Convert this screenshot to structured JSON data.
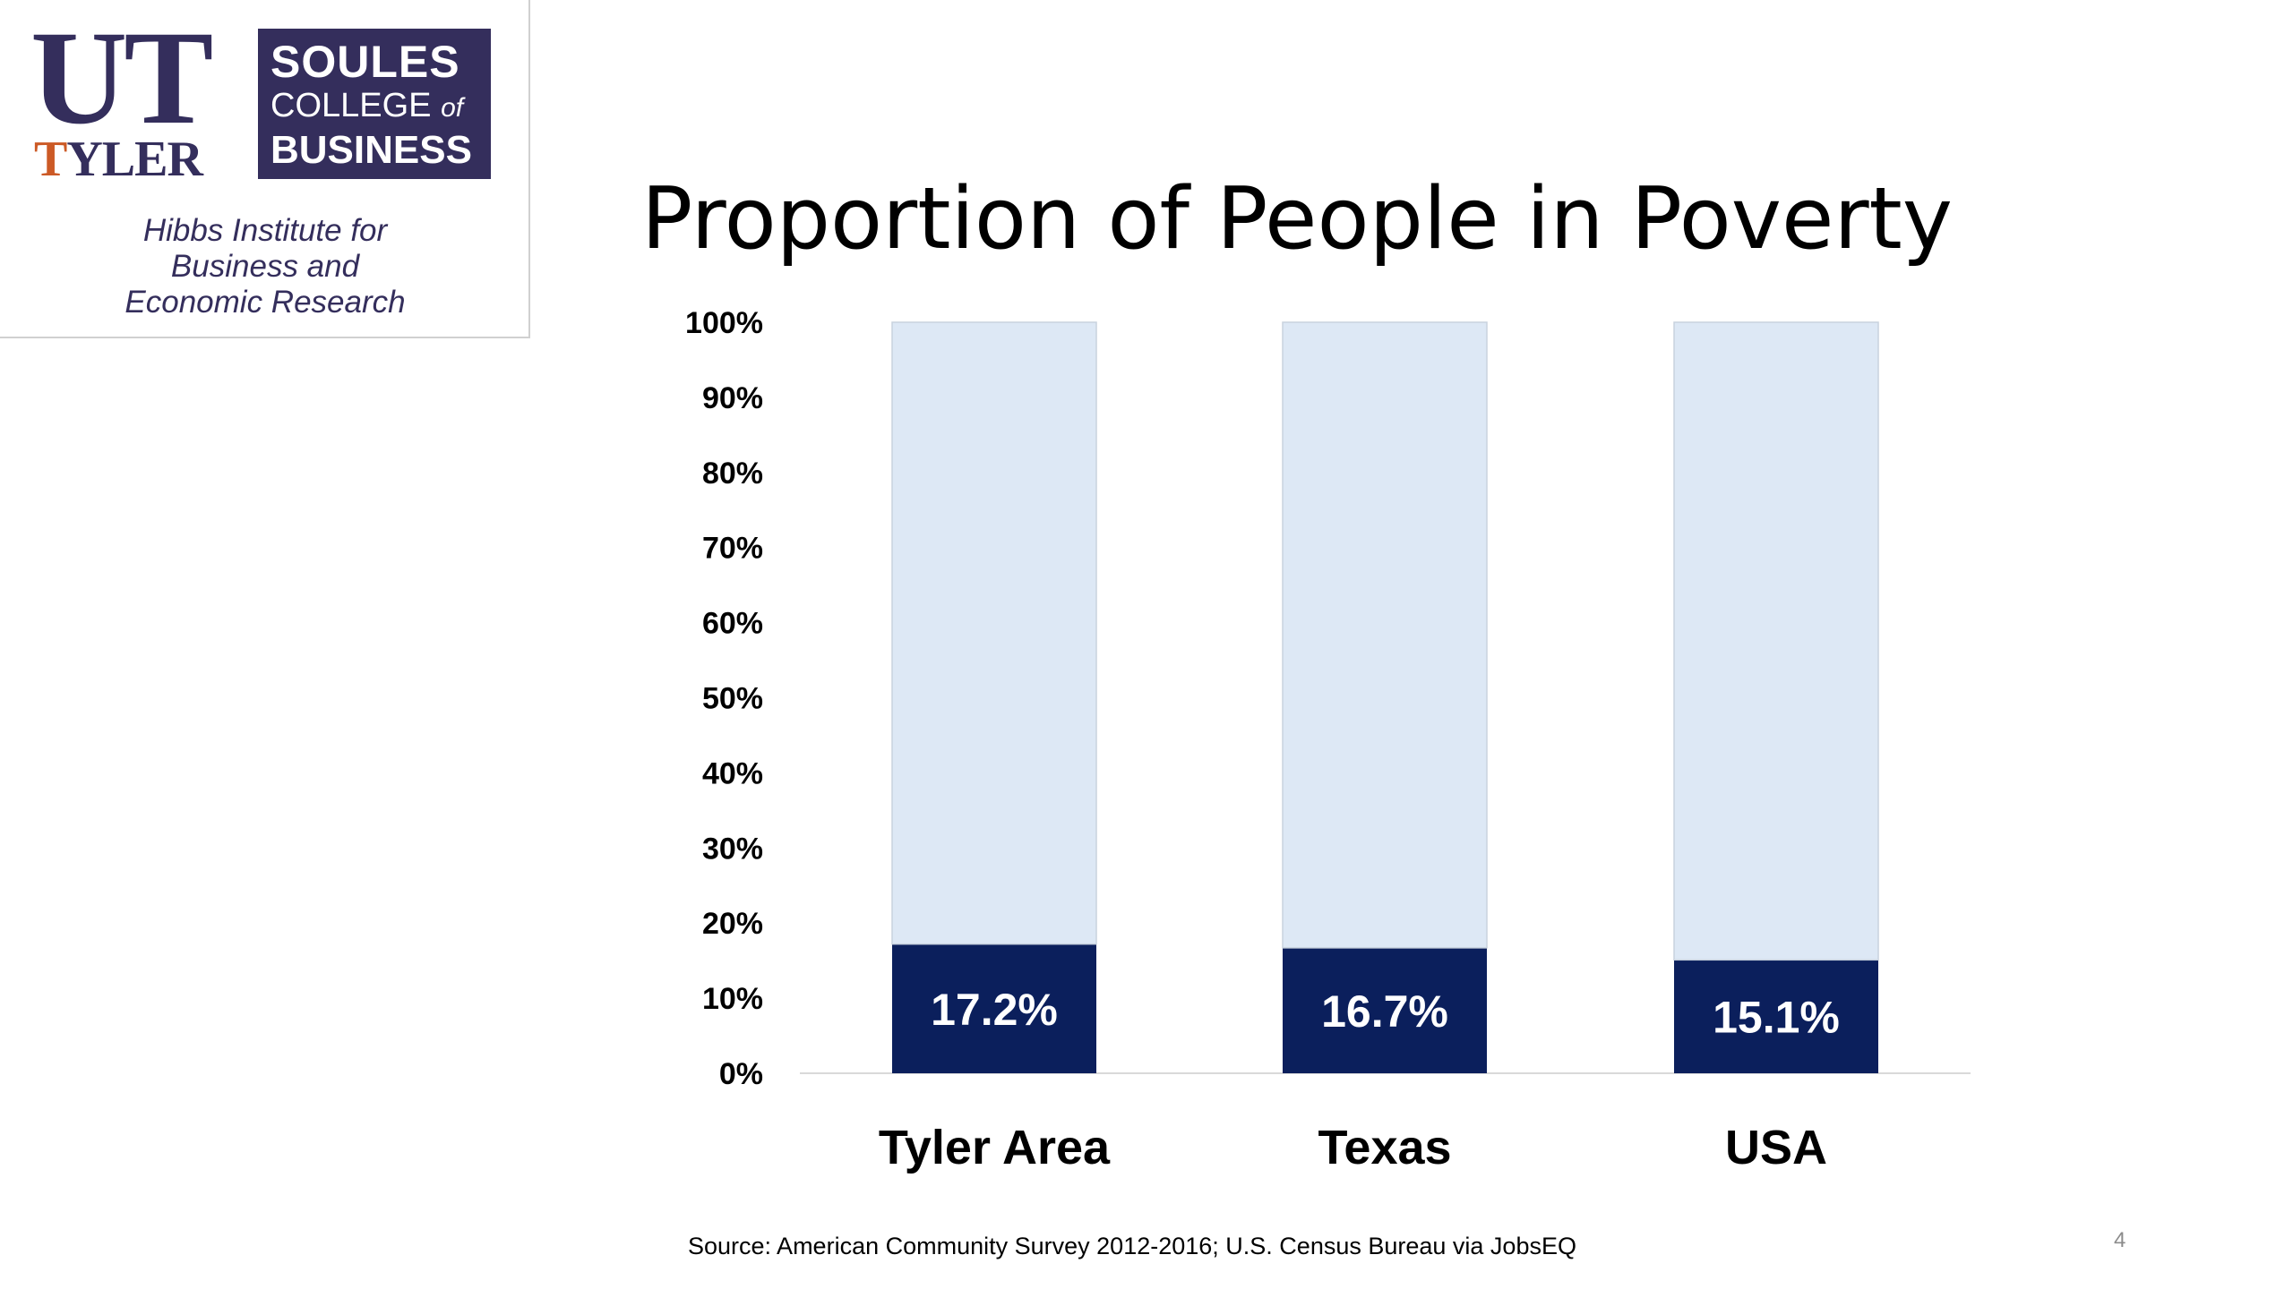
{
  "logo": {
    "ut": "UT",
    "tyler_t": "T",
    "tyler_rest": "YLER",
    "college_line1": "SOULES",
    "college_line2": "COLLEGE",
    "college_of": "of",
    "college_line3": "BUSINESS",
    "institute_line1": "Hibbs Institute for",
    "institute_line2": "Business and",
    "institute_line3": "Economic Research",
    "colors": {
      "navy": "#342e5c",
      "orange": "#cc5a26"
    }
  },
  "slide": {
    "source": "Source: American Community Survey 2012-2016; U.S. Census Bureau via JobsEQ",
    "page_number": "4"
  },
  "chart_data": {
    "type": "bar",
    "stacked": true,
    "title": "Proportion of People in Poverty",
    "categories": [
      "Tyler Area",
      "Texas",
      "USA"
    ],
    "series": [
      {
        "values": [
          17.2,
          16.7,
          15.1
        ],
        "color": "#0b1f5c"
      },
      {
        "values": [
          82.8,
          83.3,
          84.9
        ],
        "color": "#dde8f5"
      }
    ],
    "data_labels": [
      "17.2%",
      "16.7%",
      "15.1%"
    ],
    "yticks": [
      "0%",
      "10%",
      "20%",
      "30%",
      "40%",
      "50%",
      "60%",
      "70%",
      "80%",
      "90%",
      "100%"
    ],
    "ylim": [
      0,
      100
    ],
    "grid": false,
    "legend": "none"
  }
}
